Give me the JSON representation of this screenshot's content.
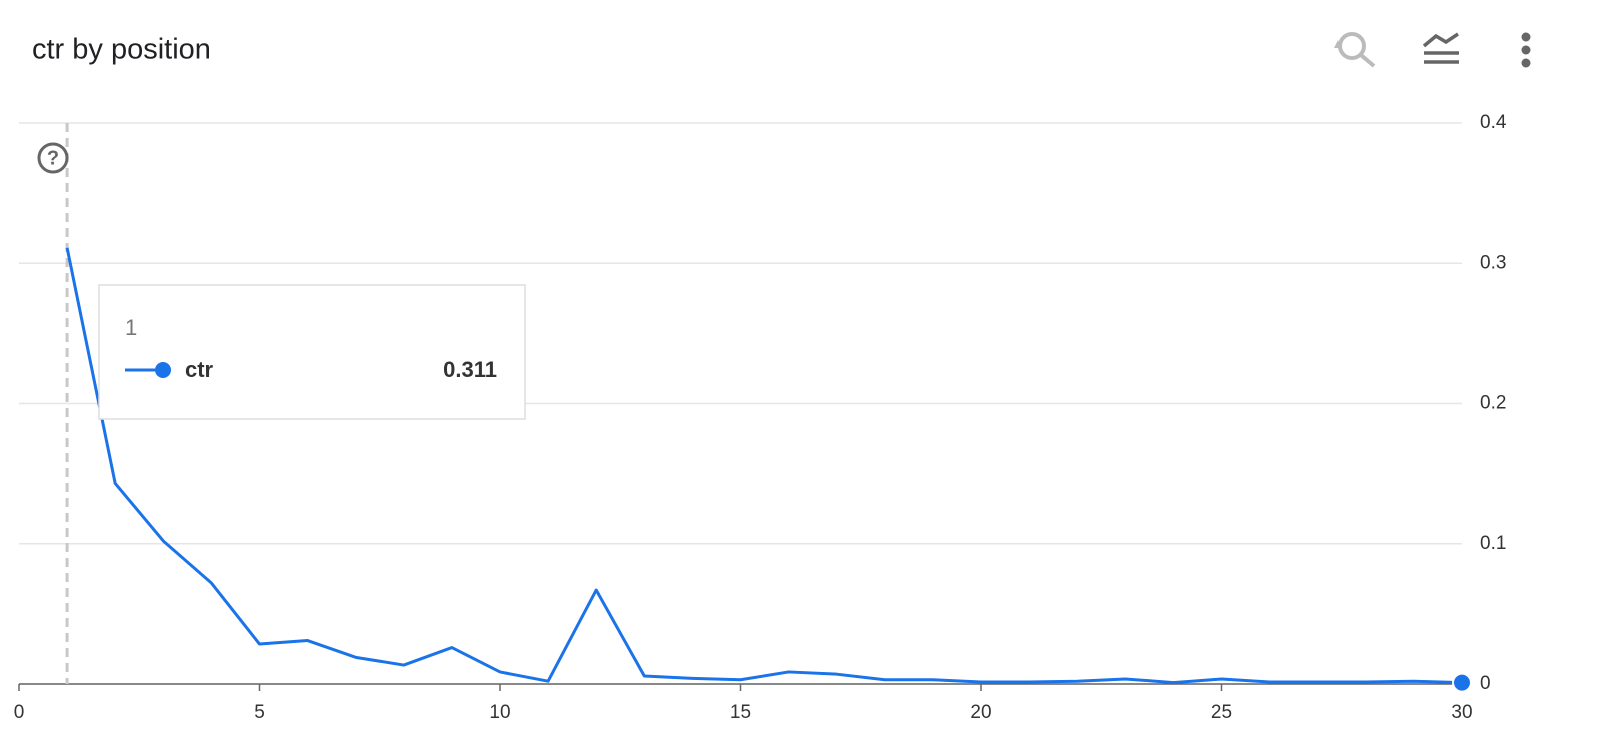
{
  "chart_data": {
    "type": "line",
    "title": "ctr by position",
    "x": [
      1,
      2,
      3,
      4,
      5,
      6,
      7,
      8,
      9,
      10,
      11,
      12,
      13,
      14,
      15,
      16,
      17,
      18,
      19,
      20,
      21,
      22,
      23,
      24,
      25,
      26,
      27,
      28,
      29,
      30
    ],
    "series": [
      {
        "name": "ctr",
        "color": "#1a73e8",
        "values": [
          0.311,
          0.143,
          0.102,
          0.072,
          0.0285,
          0.031,
          0.019,
          0.0135,
          0.026,
          0.0086,
          0.002,
          0.067,
          0.0057,
          0.004,
          0.003,
          0.0086,
          0.007,
          0.003,
          0.003,
          0.0014,
          0.0014,
          0.002,
          0.0036,
          0.001,
          0.0036,
          0.0014,
          0.0014,
          0.0014,
          0.002,
          0.001
        ]
      }
    ],
    "xlim": [
      0,
      30
    ],
    "xticks": [
      0,
      5,
      10,
      15,
      20,
      25,
      30
    ],
    "ylim": [
      0,
      0.4
    ],
    "yticks": [
      0,
      0.1,
      0.2,
      0.3,
      0.4
    ],
    "grid": true
  }
}
